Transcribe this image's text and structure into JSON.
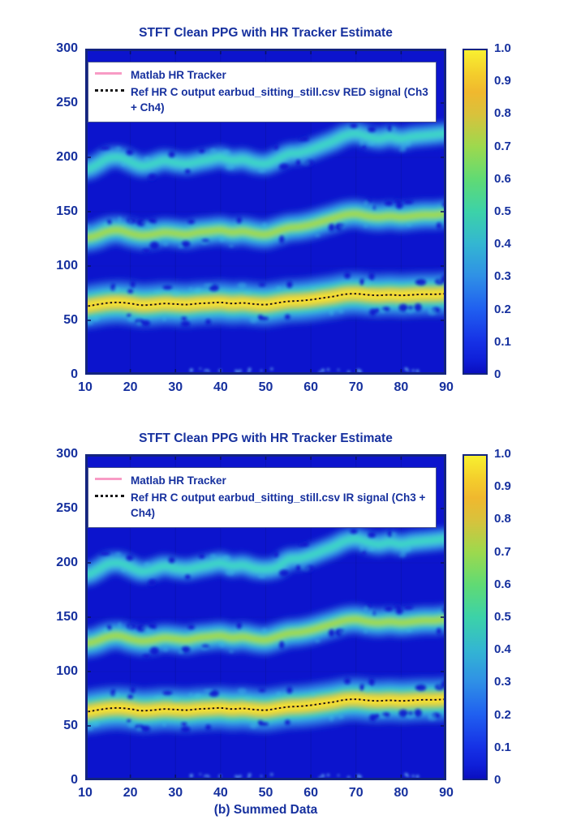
{
  "caption": "(b) Summed Data",
  "colors": {
    "accent_navy": "#16309e",
    "tracker_pink": "#f89bc5",
    "plot_background_blue": "#0c14cd",
    "border_navy": "#13247e"
  },
  "chart_data": [
    {
      "type": "heatmap",
      "title": "STFT Clean PPG with HR Tracker Estimate",
      "xlabel": "",
      "ylabel": "",
      "xlim": [
        10,
        90
      ],
      "ylim": [
        0,
        300
      ],
      "xticks": [
        "10",
        "20",
        "30",
        "40",
        "50",
        "60",
        "70",
        "80",
        "90"
      ],
      "yticks": [
        "0",
        "50",
        "100",
        "150",
        "200",
        "250",
        "300"
      ],
      "colorbar": {
        "min": 0,
        "max": 1,
        "ticks_top_down": [
          "1.0",
          "0.9",
          "0.8",
          "0.7",
          "0.6",
          "0.5",
          "0.4",
          "0.3",
          "0.2",
          "0.1",
          "0"
        ]
      },
      "legend": [
        {
          "label": "Matlab HR Tracker",
          "line": "solid-pink"
        },
        {
          "label": "Ref HR C output earbud_sitting_still.csv RED signal (Ch3 + Ch4)",
          "line": "dotted-black"
        }
      ],
      "x": [
        10,
        12.5,
        15,
        17.5,
        20,
        22.5,
        25,
        27.5,
        30,
        32.5,
        35,
        37.5,
        40,
        42.5,
        45,
        47.5,
        50,
        52.5,
        55,
        57.5,
        60,
        62.5,
        65,
        67.5,
        70,
        72.5,
        75,
        77.5,
        80,
        82.5,
        85,
        87.5,
        90
      ],
      "series": [
        {
          "name": "hr-band-fundamental",
          "y": [
            63,
            64.5,
            66,
            66.5,
            65.5,
            64,
            64.5,
            65.5,
            65,
            64.5,
            65.5,
            66,
            66.5,
            65.5,
            66,
            65,
            64.5,
            66,
            67.5,
            68,
            69,
            70.5,
            72,
            74,
            74.5,
            73.5,
            73,
            73.5,
            73,
            73.5,
            74,
            74,
            74.5
          ]
        },
        {
          "name": "hr-band-2nd-harmonic",
          "y": [
            126,
            128,
            132,
            133,
            130,
            128,
            129,
            131,
            130,
            129,
            131,
            132,
            133,
            131,
            132,
            130,
            129,
            132,
            135,
            136,
            138,
            141,
            144,
            147,
            148,
            146,
            145,
            146,
            145,
            146,
            147,
            147,
            148
          ]
        },
        {
          "name": "hr-band-3rd-harmonic",
          "y": [
            189,
            193,
            199,
            200,
            196,
            192,
            194,
            197,
            195,
            194,
            196,
            198,
            200,
            197,
            198,
            195,
            194,
            198,
            203,
            204,
            207,
            211,
            215,
            220,
            222,
            219,
            217,
            219,
            217,
            219,
            220,
            221,
            222
          ]
        },
        {
          "name": "ref-hr-c-output",
          "y": [
            63,
            64.5,
            66,
            66.5,
            65.5,
            64,
            64.5,
            65.5,
            65,
            64.5,
            65.5,
            66,
            66.5,
            65.5,
            66,
            65,
            64.5,
            66,
            67.5,
            68,
            69,
            70.5,
            72,
            74,
            74.5,
            73.5,
            73,
            73.5,
            73,
            73.5,
            74,
            74,
            74.5
          ]
        },
        {
          "name": "matlab-hr-tracker",
          "y": [
            63,
            64.5,
            66,
            66.5,
            65.5,
            64,
            64.5,
            65.5,
            65,
            64.5,
            65.5,
            66,
            66.5,
            65.5,
            66,
            65,
            64.5,
            66,
            67.5,
            68,
            69,
            70.5,
            72,
            74,
            74.5,
            73.5,
            73,
            73.5,
            73,
            73.5,
            74,
            74,
            74.5
          ]
        }
      ]
    },
    {
      "type": "heatmap",
      "title": "STFT Clean PPG with HR Tracker Estimate",
      "xlabel": "",
      "ylabel": "",
      "xlim": [
        10,
        90
      ],
      "ylim": [
        0,
        300
      ],
      "xticks": [
        "10",
        "20",
        "30",
        "40",
        "50",
        "60",
        "70",
        "80",
        "90"
      ],
      "yticks": [
        "0",
        "50",
        "100",
        "150",
        "200",
        "250",
        "300"
      ],
      "colorbar": {
        "min": 0,
        "max": 1,
        "ticks_top_down": [
          "1.0",
          "0.9",
          "0.8",
          "0.7",
          "0.6",
          "0.5",
          "0.4",
          "0.3",
          "0.2",
          "0.1",
          "0"
        ]
      },
      "legend": [
        {
          "label": "Matlab HR Tracker",
          "line": "solid-pink"
        },
        {
          "label": "Ref HR C output earbud_sitting_still.csv IR signal (Ch3 + Ch4)",
          "line": "dotted-black"
        }
      ],
      "x": [
        10,
        12.5,
        15,
        17.5,
        20,
        22.5,
        25,
        27.5,
        30,
        32.5,
        35,
        37.5,
        40,
        42.5,
        45,
        47.5,
        50,
        52.5,
        55,
        57.5,
        60,
        62.5,
        65,
        67.5,
        70,
        72.5,
        75,
        77.5,
        80,
        82.5,
        85,
        87.5,
        90
      ],
      "series": [
        {
          "name": "hr-band-fundamental",
          "y": [
            63,
            64.5,
            66,
            66.5,
            65.5,
            64,
            64.5,
            65.5,
            65,
            64.5,
            65.5,
            66,
            66.5,
            65.5,
            66,
            65,
            64.5,
            66,
            67.5,
            68,
            69,
            70.5,
            72,
            74,
            74.5,
            73.5,
            73,
            73.5,
            73,
            73.5,
            74,
            74,
            74.5
          ]
        },
        {
          "name": "hr-band-2nd-harmonic",
          "y": [
            126,
            128,
            132,
            133,
            130,
            128,
            129,
            131,
            130,
            129,
            131,
            132,
            133,
            131,
            132,
            130,
            129,
            132,
            135,
            136,
            138,
            141,
            144,
            147,
            148,
            146,
            145,
            146,
            145,
            146,
            147,
            147,
            148
          ]
        },
        {
          "name": "hr-band-3rd-harmonic",
          "y": [
            189,
            193,
            199,
            200,
            196,
            192,
            194,
            197,
            195,
            194,
            196,
            198,
            200,
            197,
            198,
            195,
            194,
            196,
            203,
            204,
            207,
            211,
            215,
            220,
            222,
            219,
            217,
            219,
            217,
            219,
            220,
            221,
            222
          ]
        },
        {
          "name": "ref-hr-c-output",
          "y": [
            63,
            64.5,
            66,
            66.5,
            65.5,
            64,
            64.5,
            65.5,
            65,
            64.5,
            65.5,
            66,
            66.5,
            65.5,
            66,
            65,
            64.5,
            66,
            67.5,
            68,
            69,
            70.5,
            72,
            74,
            74.5,
            73.5,
            73,
            73.5,
            73,
            73.5,
            74,
            74,
            74.5
          ]
        },
        {
          "name": "matlab-hr-tracker",
          "y": [
            63,
            64.5,
            66,
            66.5,
            65.5,
            64,
            64.5,
            65.5,
            65,
            64.5,
            65.5,
            66,
            66.5,
            65.5,
            66,
            65,
            64.5,
            66,
            67.5,
            68,
            69,
            70.5,
            72,
            74,
            74.5,
            73.5,
            73,
            73.5,
            73,
            73.5,
            74,
            74,
            74.5
          ]
        }
      ]
    }
  ]
}
